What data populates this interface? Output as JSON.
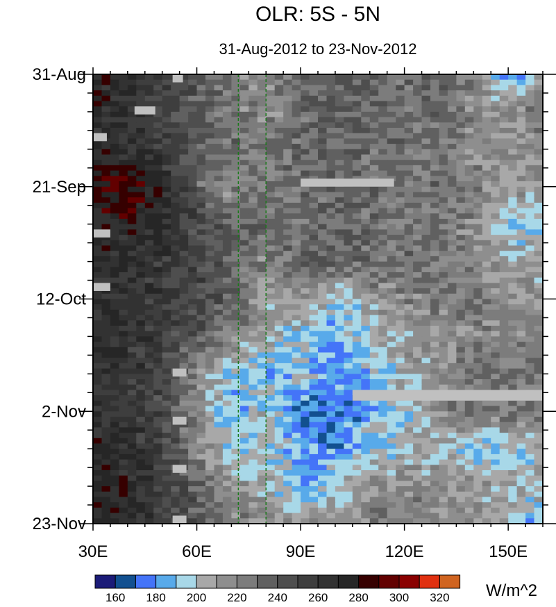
{
  "chart_data": {
    "type": "heatmap",
    "title": "OLR: 5S - 5N",
    "subtitle": "31-Aug-2012 to 23-Nov-2012",
    "units": "W/m^2",
    "x_axis": {
      "range_deg_east": [
        30,
        160
      ],
      "ticks": [
        30,
        60,
        90,
        120,
        150
      ],
      "tick_labels": [
        "30E",
        "60E",
        "90E",
        "120E",
        "150E"
      ]
    },
    "y_axis": {
      "range_days_since_start": [
        0,
        84
      ],
      "ticks": [
        0,
        21,
        42,
        63,
        84
      ],
      "tick_labels": [
        "31-Aug",
        "21-Sep",
        "12-Oct",
        "2-Nov",
        "23-Nov"
      ]
    },
    "reference_lines_deg_east": [
      72,
      80
    ],
    "grid_lon": [
      30,
      40,
      50,
      60,
      70,
      80,
      90,
      100,
      110,
      120,
      130,
      140,
      150,
      160
    ],
    "grid_day": [
      0,
      7,
      14,
      21,
      28,
      35,
      42,
      49,
      56,
      63,
      70,
      77,
      84
    ],
    "values_approx": [
      [
        275,
        270,
        255,
        240,
        225,
        215,
        235,
        235,
        240,
        230,
        235,
        220,
        170,
        220
      ],
      [
        270,
        265,
        255,
        235,
        225,
        215,
        230,
        240,
        235,
        225,
        230,
        220,
        215,
        225
      ],
      [
        270,
        265,
        255,
        240,
        230,
        225,
        235,
        235,
        230,
        230,
        225,
        215,
        215,
        220
      ],
      [
        285,
        290,
        270,
        235,
        215,
        225,
        230,
        235,
        230,
        225,
        230,
        225,
        210,
        215
      ],
      [
        275,
        275,
        270,
        250,
        235,
        230,
        225,
        235,
        230,
        225,
        225,
        215,
        195,
        190
      ],
      [
        270,
        265,
        260,
        250,
        235,
        220,
        235,
        235,
        230,
        230,
        225,
        220,
        205,
        210
      ],
      [
        270,
        265,
        260,
        250,
        235,
        210,
        215,
        195,
        210,
        220,
        225,
        225,
        215,
        215
      ],
      [
        265,
        265,
        255,
        240,
        220,
        205,
        195,
        185,
        200,
        210,
        215,
        220,
        220,
        220
      ],
      [
        265,
        260,
        250,
        215,
        195,
        190,
        195,
        180,
        190,
        205,
        215,
        230,
        225,
        230
      ],
      [
        265,
        260,
        250,
        220,
        185,
        200,
        175,
        168,
        185,
        200,
        215,
        230,
        230,
        225
      ],
      [
        270,
        265,
        255,
        220,
        195,
        200,
        185,
        178,
        195,
        200,
        205,
        185,
        190,
        205
      ],
      [
        275,
        270,
        255,
        235,
        215,
        205,
        185,
        200,
        215,
        220,
        215,
        215,
        205,
        210
      ],
      [
        275,
        270,
        255,
        240,
        225,
        215,
        210,
        215,
        220,
        225,
        220,
        215,
        205,
        180
      ]
    ],
    "missing_segments": [
      {
        "lon": [
          90,
          117
        ],
        "day": [
          19.5,
          21
        ]
      },
      {
        "lon": [
          105,
          160
        ],
        "day": [
          59,
          61
        ]
      },
      {
        "lon": [
          53,
          56
        ],
        "day": [
          0,
          1.5
        ]
      },
      {
        "lon": [
          42,
          48
        ],
        "day": [
          6,
          7.5
        ]
      },
      {
        "lon": [
          30,
          34
        ],
        "day": [
          11,
          12.5
        ]
      },
      {
        "lon": [
          30,
          35
        ],
        "day": [
          29,
          30.5
        ]
      },
      {
        "lon": [
          30,
          35
        ],
        "day": [
          39,
          40.5
        ]
      },
      {
        "lon": [
          53,
          57
        ],
        "day": [
          55,
          56.5
        ]
      },
      {
        "lon": [
          53,
          57
        ],
        "day": [
          64,
          65.5
        ]
      },
      {
        "lon": [
          53,
          57
        ],
        "day": [
          82.5,
          84
        ]
      },
      {
        "lon": [
          53,
          57
        ],
        "day": [
          73,
          74.5
        ]
      }
    ],
    "colorbar": {
      "levels": [
        160,
        170,
        180,
        190,
        200,
        210,
        220,
        230,
        240,
        250,
        260,
        270,
        280,
        290,
        300,
        310,
        320
      ],
      "labels": [
        "160",
        "180",
        "200",
        "220",
        "240",
        "260",
        "280",
        "300",
        "320"
      ],
      "colors": [
        "#1b1b78",
        "#125090",
        "#4474f8",
        "#58aaea",
        "#a8d8e8",
        "#a8a8a8",
        "#8e8e8e",
        "#7c7c7c",
        "#606060",
        "#4e4e4e",
        "#3e3e3e",
        "#323232",
        "#262626",
        "#360000",
        "#620000",
        "#8a0000",
        "#e03010",
        "#d06420"
      ]
    },
    "missing_color": "#c0c0c0",
    "reference_line_color": "#1a7a1a"
  }
}
